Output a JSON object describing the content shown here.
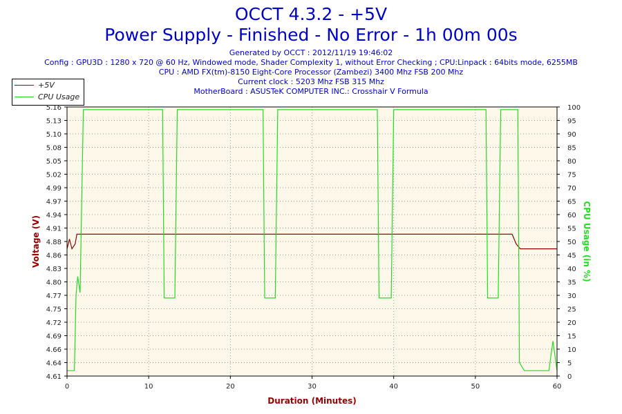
{
  "header": {
    "title": "OCCT 4.3.2 - +5V",
    "subtitle": "Power Supply - Finished - No Error - 1h 00m 00s",
    "info_lines": [
      "Generated by OCCT : 2012/11/19 19:46:02",
      "Config : GPU3D : 1280 x 720 @ 60 Hz, Windowed mode, Shader Complexity 1, without Error Checking ; CPU:Linpack : 64bits mode, 6255MB",
      "CPU : AMD FX(tm)-8150 Eight-Core Processor (Zambezi) 3400 Mhz FSB 200 Mhz",
      "Current clock : 5203 Mhz FSB 315 Mhz",
      "MotherBoard : ASUSTeK COMPUTER INC.: Crosshair V Formula"
    ]
  },
  "colors": {
    "voltage": "#990000",
    "cpu": "#22dd22",
    "plot_bg": "#fdf8ea",
    "title": "#0000cc"
  },
  "chart_data": {
    "type": "line",
    "title": "OCCT 4.3.2 - +5V",
    "xlabel": "Duration (Minutes)",
    "ylabel": "Voltage (V)",
    "y2label": "CPU Usage (in %)",
    "xlim": [
      0,
      60
    ],
    "ylim": [
      4.61,
      5.16
    ],
    "y2lim": [
      0,
      100
    ],
    "x_ticks": [
      "0",
      "10",
      "20",
      "30",
      "40",
      "50",
      "60"
    ],
    "y_ticks": [
      "4.61",
      "4.64",
      "4.66",
      "4.69",
      "4.72",
      "4.75",
      "4.77",
      "4.80",
      "4.83",
      "4.86",
      "4.88",
      "4.91",
      "4.94",
      "4.97",
      "4.99",
      "5.02",
      "5.05",
      "5.08",
      "5.10",
      "5.13",
      "5.16"
    ],
    "y2_ticks": [
      "0",
      "5",
      "10",
      "15",
      "20",
      "25",
      "30",
      "35",
      "40",
      "45",
      "50",
      "55",
      "60",
      "65",
      "70",
      "75",
      "80",
      "85",
      "90",
      "95",
      "100"
    ],
    "legend": [
      "+5V",
      "CPU Usage"
    ],
    "legend_position": "top-left",
    "grid": true,
    "series": [
      {
        "name": "+5V",
        "axis": "left",
        "x": [
          0,
          0.3,
          0.6,
          1.0,
          1.2,
          1.5,
          2,
          10,
          20,
          30,
          40,
          50,
          54.5,
          55,
          55.5,
          57,
          58,
          59,
          60
        ],
        "y": [
          4.87,
          4.89,
          4.87,
          4.88,
          4.9,
          4.9,
          4.9,
          4.9,
          4.9,
          4.9,
          4.9,
          4.9,
          4.9,
          4.88,
          4.87,
          4.87,
          4.87,
          4.87,
          4.87
        ]
      },
      {
        "name": "CPU Usage",
        "axis": "right",
        "x": [
          0,
          0.9,
          1.1,
          1.3,
          1.6,
          2.0,
          11.7,
          11.9,
          12.2,
          13.2,
          13.5,
          13.7,
          24.0,
          24.2,
          24.5,
          25.5,
          25.8,
          26.0,
          38.0,
          38.2,
          38.5,
          39.7,
          40.0,
          40.2,
          51.3,
          51.5,
          51.8,
          52.8,
          53.1,
          53.3,
          55.2,
          55.4,
          56,
          58,
          59,
          59.5,
          60
        ],
        "y": [
          2,
          2,
          30,
          37,
          31,
          99,
          99,
          29,
          29,
          29,
          99,
          99,
          99,
          29,
          29,
          29,
          99,
          99,
          99,
          29,
          29,
          29,
          99,
          99,
          99,
          29,
          29,
          29,
          99,
          99,
          99,
          5,
          2,
          2,
          2,
          13,
          2
        ]
      }
    ]
  }
}
